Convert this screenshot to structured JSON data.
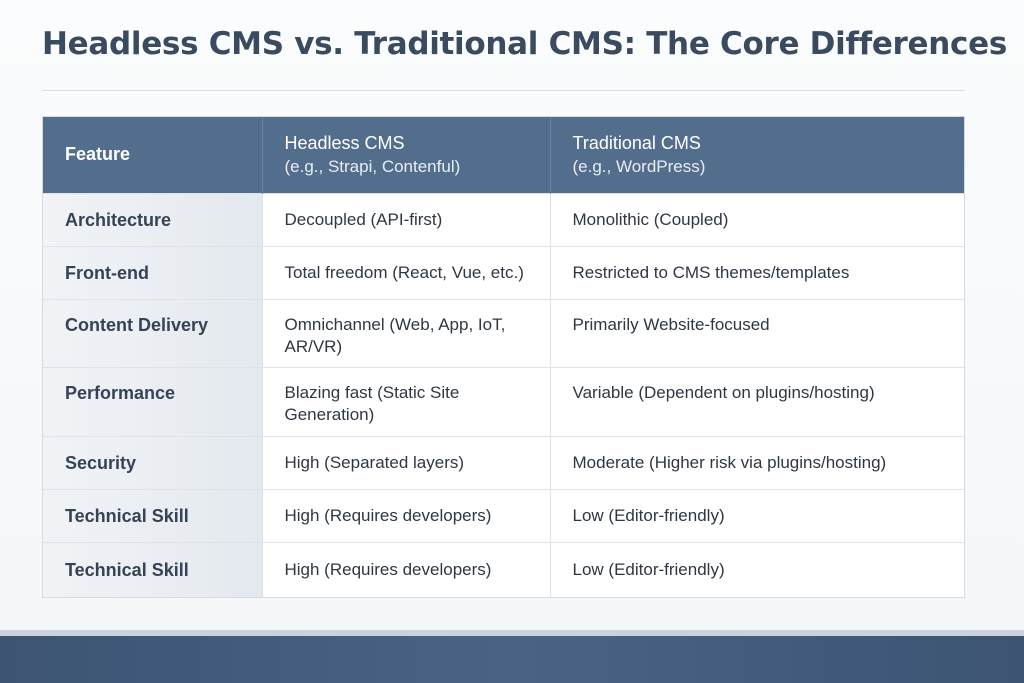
{
  "title": "Headless CMS vs. Traditional CMS: The Core Differences",
  "table": {
    "headers": [
      {
        "label": "Feature",
        "sub": ""
      },
      {
        "label": "Headless CMS",
        "sub": "(e.g., Strapi, Contenful)"
      },
      {
        "label": "Traditional CMS",
        "sub": "(e.g., WordPress)"
      }
    ],
    "rows": [
      {
        "feature": "Architecture",
        "headless": "Decoupled (API-first)",
        "traditional": "Monolithic (Coupled)"
      },
      {
        "feature": "Front-end",
        "headless": "Total freedom (React, Vue, etc.)",
        "traditional": "Restricted to CMS themes/templates"
      },
      {
        "feature": "Content Delivery",
        "headless": "Omnichannel (Web, App, IoT, AR/VR)",
        "traditional": "Primarily Website-focused"
      },
      {
        "feature": "Performance",
        "headless": "Blazing fast (Static Site Generation)",
        "traditional": "Variable (Dependent on plugins/hosting)"
      },
      {
        "feature": "Security",
        "headless": "High (Separated layers)",
        "traditional": "Moderate (Higher risk via plugins/hosting)"
      },
      {
        "feature": "Technical Skill",
        "headless": "High (Requires developers)",
        "traditional": "Low (Editor-friendly)"
      },
      {
        "feature": "Technical Skill",
        "headless": "High (Requires developers)",
        "traditional": "Low (Editor-friendly)"
      }
    ]
  },
  "colors": {
    "header_bg": "#536e8c",
    "title": "#3a4a5f",
    "footer": "#3d5573"
  }
}
